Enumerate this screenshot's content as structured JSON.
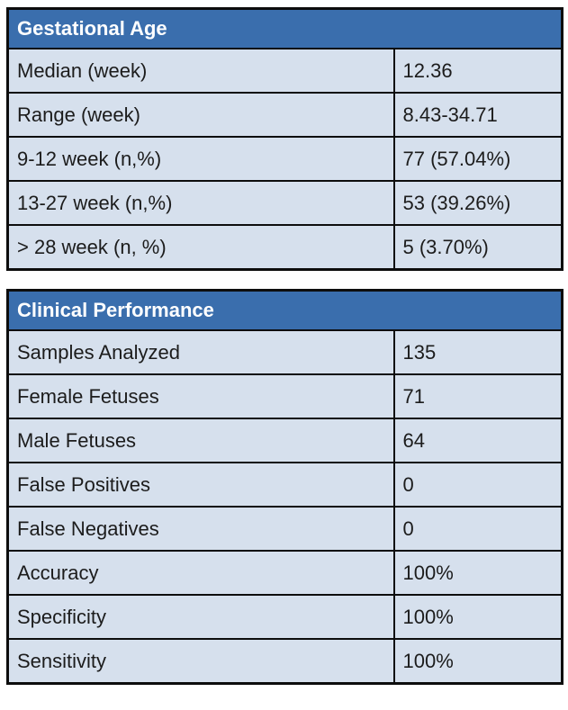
{
  "colors": {
    "header_bg": "#3a6ead",
    "header_text": "#ffffff",
    "row_bg": "#d6e0ed",
    "border": "#0d0d0d",
    "cell_text": "#1c1c1c"
  },
  "tables": [
    {
      "title": "Gestational Age",
      "rows": [
        {
          "label": "Median (week)",
          "value": "12.36"
        },
        {
          "label": "Range (week)",
          "value": "8.43-34.71"
        },
        {
          "label": "9-12 week (n,%)",
          "value": "77 (57.04%)"
        },
        {
          "label": "13-27 week (n,%)",
          "value": "53 (39.26%)"
        },
        {
          "label": "> 28 week (n, %)",
          "value": "5 (3.70%)"
        }
      ]
    },
    {
      "title": "Clinical Performance",
      "rows": [
        {
          "label": "Samples Analyzed",
          "value": "135"
        },
        {
          "label": "Female Fetuses",
          "value": "71"
        },
        {
          "label": "Male Fetuses",
          "value": "64"
        },
        {
          "label": "False Positives",
          "value": "0"
        },
        {
          "label": "False Negatives",
          "value": "0"
        },
        {
          "label": "Accuracy",
          "value": "100%"
        },
        {
          "label": "Specificity",
          "value": "100%"
        },
        {
          "label": "Sensitivity",
          "value": "100%"
        }
      ]
    }
  ]
}
